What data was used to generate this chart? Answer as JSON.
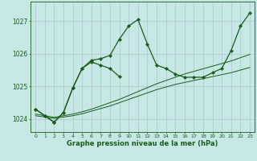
{
  "background_color": "#c5e8e5",
  "grid_color": "#b0b8cc",
  "line_color": "#1a5c1a",
  "xlabel": "Graphe pression niveau de la mer (hPa)",
  "ylim": [
    1023.6,
    1027.6
  ],
  "xlim": [
    -0.5,
    23.5
  ],
  "yticks": [
    1024,
    1025,
    1026,
    1027
  ],
  "xticks": [
    0,
    1,
    2,
    3,
    4,
    5,
    6,
    7,
    8,
    9,
    10,
    11,
    12,
    13,
    14,
    15,
    16,
    17,
    18,
    19,
    20,
    21,
    22,
    23
  ],
  "series1": [
    1024.3,
    1024.1,
    1023.9,
    1024.2,
    1024.95,
    1025.55,
    1025.8,
    1025.85,
    1025.95,
    1026.45,
    1026.85,
    1027.05,
    1026.3,
    1025.65,
    1025.55,
    1025.38,
    1025.28,
    1025.28,
    1025.28,
    1025.42,
    1025.55,
    1026.1,
    1026.85,
    1027.25
  ],
  "series2_x": [
    0,
    1,
    2,
    3,
    4,
    5,
    6,
    7,
    8,
    9
  ],
  "series2_y": [
    1024.3,
    1024.1,
    1023.9,
    1024.2,
    1024.95,
    1025.55,
    1025.75,
    1025.65,
    1025.55,
    1025.3
  ],
  "series3": [
    1024.15,
    1024.1,
    1024.05,
    1024.1,
    1024.15,
    1024.22,
    1024.3,
    1024.4,
    1024.5,
    1024.6,
    1024.72,
    1024.84,
    1024.96,
    1025.08,
    1025.18,
    1025.28,
    1025.38,
    1025.46,
    1025.54,
    1025.62,
    1025.7,
    1025.78,
    1025.88,
    1025.98
  ],
  "series4": [
    1024.1,
    1024.06,
    1024.02,
    1024.06,
    1024.1,
    1024.16,
    1024.24,
    1024.32,
    1024.4,
    1024.5,
    1024.6,
    1024.7,
    1024.8,
    1024.9,
    1024.98,
    1025.06,
    1025.12,
    1025.18,
    1025.24,
    1025.3,
    1025.36,
    1025.42,
    1025.5,
    1025.58
  ]
}
